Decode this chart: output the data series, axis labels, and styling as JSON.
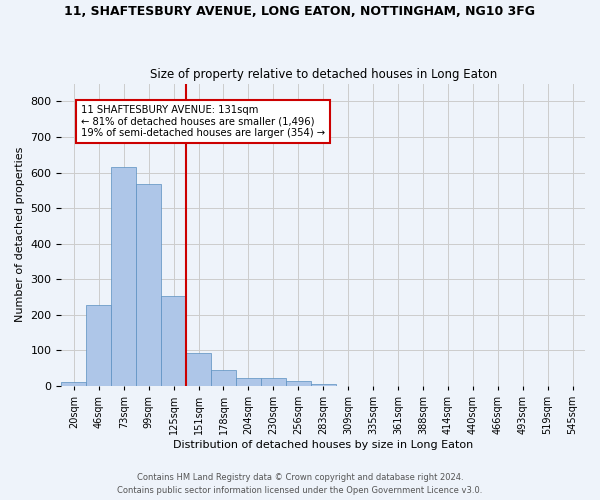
{
  "title1": "11, SHAFTESBURY AVENUE, LONG EATON, NOTTINGHAM, NG10 3FG",
  "title2": "Size of property relative to detached houses in Long Eaton",
  "xlabel": "Distribution of detached houses by size in Long Eaton",
  "ylabel": "Number of detached properties",
  "footer1": "Contains HM Land Registry data © Crown copyright and database right 2024.",
  "footer2": "Contains public sector information licensed under the Open Government Licence v3.0.",
  "bar_labels": [
    "20sqm",
    "46sqm",
    "73sqm",
    "99sqm",
    "125sqm",
    "151sqm",
    "178sqm",
    "204sqm",
    "230sqm",
    "256sqm",
    "283sqm",
    "309sqm",
    "335sqm",
    "361sqm",
    "388sqm",
    "414sqm",
    "440sqm",
    "466sqm",
    "493sqm",
    "519sqm",
    "545sqm"
  ],
  "bar_values": [
    10,
    228,
    615,
    568,
    253,
    93,
    46,
    22,
    22,
    15,
    7,
    0,
    0,
    0,
    0,
    0,
    0,
    0,
    0,
    0,
    0
  ],
  "bar_color": "#aec6e8",
  "bar_edge_color": "#5a8fc0",
  "annotation_text": "11 SHAFTESBURY AVENUE: 131sqm\n← 81% of detached houses are smaller (1,496)\n19% of semi-detached houses are larger (354) →",
  "annotation_box_color": "#ffffff",
  "annotation_box_edge": "#cc0000",
  "vline_color": "#cc0000",
  "ylim": [
    0,
    850
  ],
  "yticks": [
    0,
    100,
    200,
    300,
    400,
    500,
    600,
    700,
    800
  ],
  "grid_color": "#cccccc",
  "bg_color": "#eef3fa",
  "bar_width": 1.0
}
